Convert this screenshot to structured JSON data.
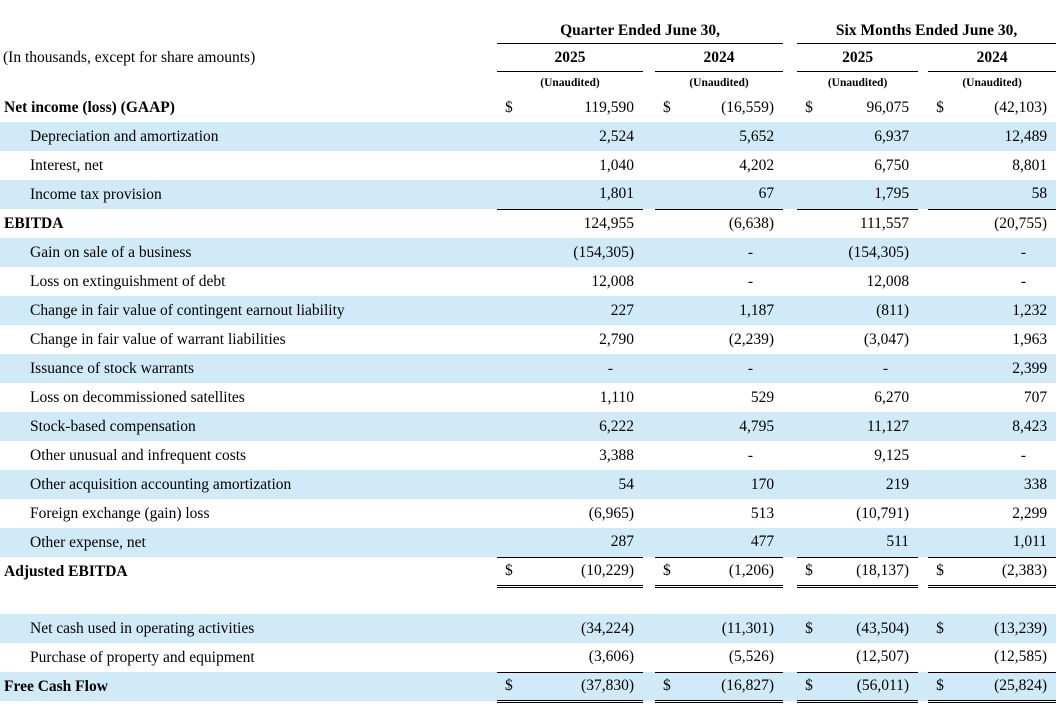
{
  "colors": {
    "row_shade": "#d0eaf8",
    "rule": "#000000",
    "text": "#000000"
  },
  "table": {
    "units_note": "(In thousands, except for share amounts)",
    "unaudited": "(Unaudited)",
    "col_groups": [
      {
        "label": "Quarter Ended June 30,",
        "years": [
          "2025",
          "2024"
        ]
      },
      {
        "label": "Six Months Ended June 30,",
        "years": [
          "2025",
          "2024"
        ]
      }
    ],
    "rows": [
      {
        "label": "Net income (loss) (GAAP)",
        "bold": true,
        "indent": false,
        "shaded": false,
        "underline": "none",
        "cells": [
          [
            "$",
            "119,590"
          ],
          [
            "$",
            "(16,559)"
          ],
          [
            "$",
            "96,075"
          ],
          [
            "$",
            "(42,103)"
          ]
        ]
      },
      {
        "label": "Depreciation and amortization",
        "bold": false,
        "indent": true,
        "shaded": true,
        "underline": "none",
        "cells": [
          [
            "",
            "2,524"
          ],
          [
            "",
            "5,652"
          ],
          [
            "",
            "6,937"
          ],
          [
            "",
            "12,489"
          ]
        ]
      },
      {
        "label": "Interest, net",
        "bold": false,
        "indent": true,
        "shaded": false,
        "underline": "none",
        "cells": [
          [
            "",
            "1,040"
          ],
          [
            "",
            "4,202"
          ],
          [
            "",
            "6,750"
          ],
          [
            "",
            "8,801"
          ]
        ]
      },
      {
        "label": "Income tax provision",
        "bold": false,
        "indent": true,
        "shaded": true,
        "underline": "single",
        "cells": [
          [
            "",
            "1,801"
          ],
          [
            "",
            "67"
          ],
          [
            "",
            "1,795"
          ],
          [
            "",
            "58"
          ]
        ]
      },
      {
        "label": "EBITDA",
        "bold": true,
        "indent": false,
        "shaded": false,
        "underline": "none",
        "cells": [
          [
            "",
            "124,955"
          ],
          [
            "",
            "(6,638)"
          ],
          [
            "",
            "111,557"
          ],
          [
            "",
            "(20,755)"
          ]
        ]
      },
      {
        "label": "Gain on sale of a business",
        "bold": false,
        "indent": true,
        "shaded": true,
        "underline": "none",
        "cells": [
          [
            "",
            "(154,305)"
          ],
          [
            "",
            "-"
          ],
          [
            "",
            "(154,305)"
          ],
          [
            "",
            "-"
          ]
        ]
      },
      {
        "label": "Loss on extinguishment of debt",
        "bold": false,
        "indent": true,
        "shaded": false,
        "underline": "none",
        "cells": [
          [
            "",
            "12,008"
          ],
          [
            "",
            "-"
          ],
          [
            "",
            "12,008"
          ],
          [
            "",
            "-"
          ]
        ]
      },
      {
        "label": "Change in fair value of contingent earnout liability",
        "bold": false,
        "indent": true,
        "shaded": true,
        "underline": "none",
        "cells": [
          [
            "",
            "227"
          ],
          [
            "",
            "1,187"
          ],
          [
            "",
            "(811)"
          ],
          [
            "",
            "1,232"
          ]
        ]
      },
      {
        "label": "Change in fair value of warrant liabilities",
        "bold": false,
        "indent": true,
        "shaded": false,
        "underline": "none",
        "cells": [
          [
            "",
            "2,790"
          ],
          [
            "",
            "(2,239)"
          ],
          [
            "",
            "(3,047)"
          ],
          [
            "",
            "1,963"
          ]
        ]
      },
      {
        "label": "Issuance of stock warrants",
        "bold": false,
        "indent": true,
        "shaded": true,
        "underline": "none",
        "cells": [
          [
            "",
            "-"
          ],
          [
            "",
            "-"
          ],
          [
            "",
            "-"
          ],
          [
            "",
            "2,399"
          ]
        ]
      },
      {
        "label": "Loss on decommissioned satellites",
        "bold": false,
        "indent": true,
        "shaded": false,
        "underline": "none",
        "cells": [
          [
            "",
            "1,110"
          ],
          [
            "",
            "529"
          ],
          [
            "",
            "6,270"
          ],
          [
            "",
            "707"
          ]
        ]
      },
      {
        "label": "Stock-based compensation",
        "bold": false,
        "indent": true,
        "shaded": true,
        "underline": "none",
        "cells": [
          [
            "",
            "6,222"
          ],
          [
            "",
            "4,795"
          ],
          [
            "",
            "11,127"
          ],
          [
            "",
            "8,423"
          ]
        ]
      },
      {
        "label": "Other unusual and infrequent costs",
        "bold": false,
        "indent": true,
        "shaded": false,
        "underline": "none",
        "cells": [
          [
            "",
            "3,388"
          ],
          [
            "",
            "-"
          ],
          [
            "",
            "9,125"
          ],
          [
            "",
            "-"
          ]
        ]
      },
      {
        "label": "Other acquisition accounting amortization",
        "bold": false,
        "indent": true,
        "shaded": true,
        "underline": "none",
        "cells": [
          [
            "",
            "54"
          ],
          [
            "",
            "170"
          ],
          [
            "",
            "219"
          ],
          [
            "",
            "338"
          ]
        ]
      },
      {
        "label": "Foreign exchange (gain) loss",
        "bold": false,
        "indent": true,
        "shaded": false,
        "underline": "none",
        "cells": [
          [
            "",
            "(6,965)"
          ],
          [
            "",
            "513"
          ],
          [
            "",
            "(10,791)"
          ],
          [
            "",
            "2,299"
          ]
        ]
      },
      {
        "label": "Other expense, net",
        "bold": false,
        "indent": true,
        "shaded": true,
        "underline": "single",
        "cells": [
          [
            "",
            "287"
          ],
          [
            "",
            "477"
          ],
          [
            "",
            "511"
          ],
          [
            "",
            "1,011"
          ]
        ]
      },
      {
        "label": "Adjusted EBITDA",
        "bold": true,
        "indent": false,
        "shaded": false,
        "underline": "double",
        "cells": [
          [
            "$",
            "(10,229)"
          ],
          [
            "$",
            "(1,206)"
          ],
          [
            "$",
            "(18,137)"
          ],
          [
            "$",
            "(2,383)"
          ]
        ]
      },
      {
        "type": "blank",
        "label": "",
        "bold": false,
        "indent": false,
        "shaded": false,
        "underline": "none",
        "cells": [
          [
            "",
            ""
          ],
          [
            "",
            ""
          ],
          [
            "",
            ""
          ],
          [
            "",
            ""
          ]
        ]
      },
      {
        "label": "Net cash used in operating activities",
        "bold": false,
        "indent": true,
        "shaded": true,
        "underline": "none",
        "cells": [
          [
            "",
            "(34,224)"
          ],
          [
            "",
            "(11,301)"
          ],
          [
            "$",
            "(43,504)"
          ],
          [
            "$",
            "(13,239)"
          ]
        ]
      },
      {
        "label": "Purchase of property and equipment",
        "bold": false,
        "indent": true,
        "shaded": false,
        "underline": "single",
        "cells": [
          [
            "",
            "(3,606)"
          ],
          [
            "",
            "(5,526)"
          ],
          [
            "",
            "(12,507)"
          ],
          [
            "",
            "(12,585)"
          ]
        ]
      },
      {
        "label": "Free Cash Flow",
        "bold": true,
        "indent": false,
        "shaded": true,
        "underline": "double",
        "cells": [
          [
            "$",
            "(37,830)"
          ],
          [
            "$",
            "(16,827)"
          ],
          [
            "$",
            "(56,011)"
          ],
          [
            "$",
            "(25,824)"
          ]
        ]
      }
    ]
  }
}
